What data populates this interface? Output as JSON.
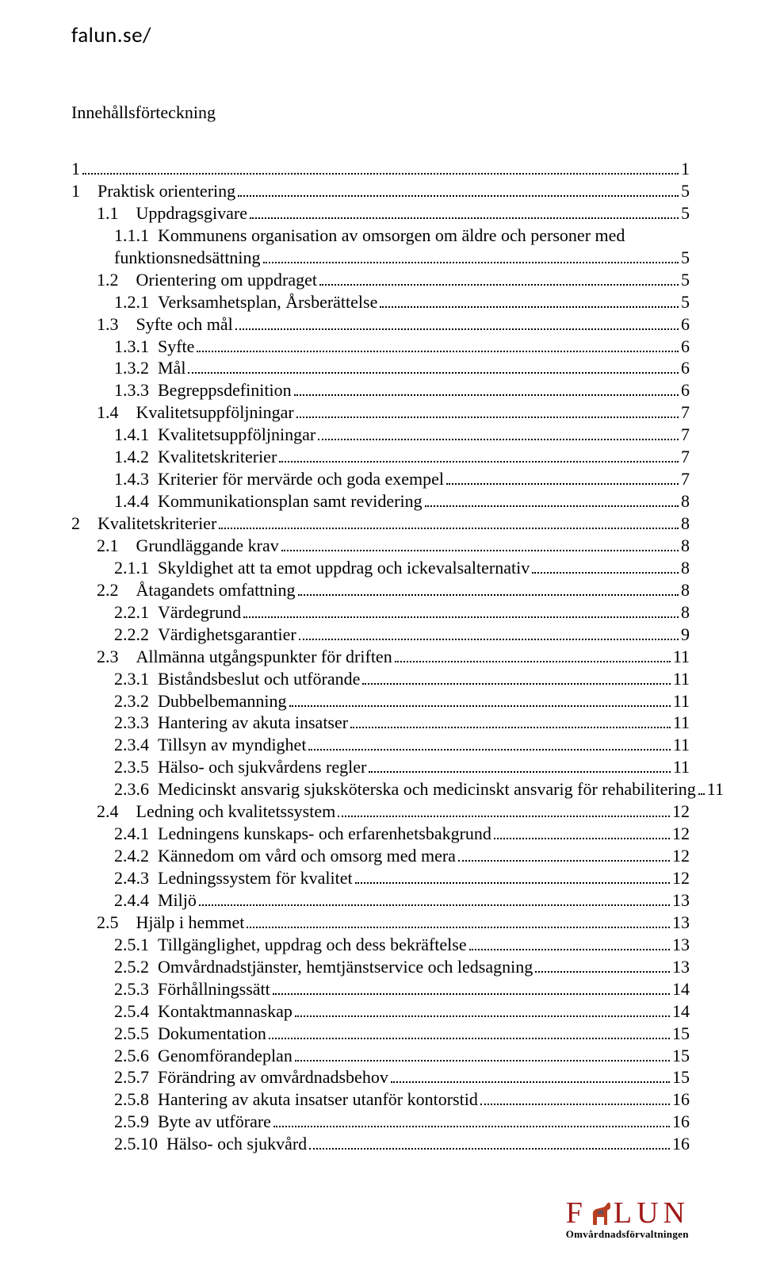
{
  "header": {
    "site_url": "falun.se/"
  },
  "toc_title": "Innehållsförteckning",
  "toc": [
    {
      "num": "1",
      "label": "",
      "page": "1",
      "indent": 0
    },
    {
      "num": "1",
      "label": "Praktisk orientering",
      "page": "5",
      "indent": 0
    },
    {
      "num": "1.1",
      "label": "Uppdragsgivare",
      "page": "5",
      "indent": 1
    },
    {
      "num": "1.1.1",
      "label": "Kommunens organisation av omsorgen om äldre och personer med",
      "page": "",
      "indent": 2,
      "nobreak": true
    },
    {
      "num": "",
      "label": "funktionsnedsättning",
      "page": "5",
      "indent": 2
    },
    {
      "num": "1.2",
      "label": "Orientering om uppdraget",
      "page": "5",
      "indent": 1
    },
    {
      "num": "1.2.1",
      "label": "Verksamhetsplan, Årsberättelse",
      "page": "5",
      "indent": 2
    },
    {
      "num": "1.3",
      "label": "Syfte och mål",
      "page": "6",
      "indent": 1
    },
    {
      "num": "1.3.1",
      "label": "Syfte",
      "page": "6",
      "indent": 2
    },
    {
      "num": "1.3.2",
      "label": "Mål",
      "page": "6",
      "indent": 2
    },
    {
      "num": "1.3.3",
      "label": "Begreppsdefinition",
      "page": "6",
      "indent": 2
    },
    {
      "num": "1.4",
      "label": "Kvalitetsuppföljningar",
      "page": "7",
      "indent": 1
    },
    {
      "num": "1.4.1",
      "label": "Kvalitetsuppföljningar",
      "page": "7",
      "indent": 2
    },
    {
      "num": "1.4.2",
      "label": "Kvalitetskriterier",
      "page": "7",
      "indent": 2
    },
    {
      "num": "1.4.3",
      "label": "Kriterier för mervärde och goda exempel",
      "page": "7",
      "indent": 2
    },
    {
      "num": "1.4.4",
      "label": "Kommunikationsplan samt revidering",
      "page": "8",
      "indent": 2
    },
    {
      "num": "2",
      "label": "Kvalitetskriterier",
      "page": "8",
      "indent": 0
    },
    {
      "num": "2.1",
      "label": "Grundläggande krav",
      "page": "8",
      "indent": 1
    },
    {
      "num": "2.1.1",
      "label": "Skyldighet att ta emot uppdrag och ickevalsalternativ",
      "page": "8",
      "indent": 2
    },
    {
      "num": "2.2",
      "label": "Åtagandets omfattning",
      "page": "8",
      "indent": 1
    },
    {
      "num": "2.2.1",
      "label": "Värdegrund",
      "page": "8",
      "indent": 2
    },
    {
      "num": "2.2.2",
      "label": "Värdighetsgarantier",
      "page": "9",
      "indent": 2
    },
    {
      "num": "2.3",
      "label": "Allmänna utgångspunkter för driften",
      "page": "11",
      "indent": 1
    },
    {
      "num": "2.3.1",
      "label": "Biståndsbeslut och utförande",
      "page": "11",
      "indent": 2
    },
    {
      "num": "2.3.2",
      "label": "Dubbelbemanning",
      "page": "11",
      "indent": 2
    },
    {
      "num": "2.3.3",
      "label": "Hantering av akuta insatser",
      "page": "11",
      "indent": 2
    },
    {
      "num": "2.3.4",
      "label": "Tillsyn av myndighet",
      "page": "11",
      "indent": 2
    },
    {
      "num": "2.3.5",
      "label": "Hälso- och sjukvårdens regler",
      "page": "11",
      "indent": 2
    },
    {
      "num": "2.3.6",
      "label": "Medicinskt ansvarig sjuksköterska och medicinskt ansvarig för rehabilitering",
      "page": "11",
      "indent": 2
    },
    {
      "num": "2.4",
      "label": "Ledning och kvalitetssystem",
      "page": "12",
      "indent": 1
    },
    {
      "num": "2.4.1",
      "label": "Ledningens kunskaps- och erfarenhetsbakgrund",
      "page": "12",
      "indent": 2
    },
    {
      "num": "2.4.2",
      "label": "Kännedom om vård och omsorg med mera",
      "page": "12",
      "indent": 2
    },
    {
      "num": "2.4.3",
      "label": "Ledningssystem för kvalitet",
      "page": "12",
      "indent": 2
    },
    {
      "num": "2.4.4",
      "label": "Miljö",
      "page": "13",
      "indent": 2
    },
    {
      "num": "2.5",
      "label": "Hjälp i hemmet",
      "page": "13",
      "indent": 1
    },
    {
      "num": "2.5.1",
      "label": "Tillgänglighet, uppdrag och dess bekräftelse",
      "page": "13",
      "indent": 2
    },
    {
      "num": "2.5.2",
      "label": "Omvårdnadstjänster, hemtjänstservice och ledsagning",
      "page": "13",
      "indent": 2
    },
    {
      "num": "2.5.3",
      "label": "Förhållningssätt",
      "page": "14",
      "indent": 2
    },
    {
      "num": "2.5.4",
      "label": "Kontaktmannaskap",
      "page": "14",
      "indent": 2
    },
    {
      "num": "2.5.5",
      "label": "Dokumentation",
      "page": "15",
      "indent": 2
    },
    {
      "num": "2.5.6",
      "label": "Genomförandeplan",
      "page": "15",
      "indent": 2
    },
    {
      "num": "2.5.7",
      "label": "Förändring av omvårdnadsbehov",
      "page": "15",
      "indent": 2
    },
    {
      "num": "2.5.8",
      "label": "Hantering av akuta insatser utanför kontorstid",
      "page": "16",
      "indent": 2
    },
    {
      "num": "2.5.9",
      "label": "Byte av utförare",
      "page": "16",
      "indent": 2
    },
    {
      "num": "2.5.10",
      "label": "Hälso- och sjukvård",
      "page": "16",
      "indent": 2
    }
  ],
  "footer": {
    "brand_left": "F",
    "brand_right": "LUN",
    "brand_color": "#a01818",
    "horse_color": "#b84020",
    "subline": "Omvårdnadsförvaltningen"
  }
}
